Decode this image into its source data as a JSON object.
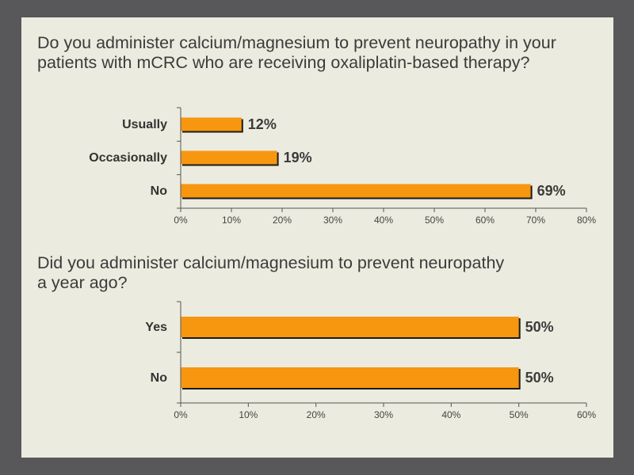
{
  "questions": {
    "q1": "Do you administer calcium/magnesium to prevent neuropathy in your patients with mCRC who are receiving oxaliplatin-based therapy?",
    "q2": "Did you administer calcium/magnesium to prevent neuropathy\na year ago?"
  },
  "colors": {
    "bar": "#f7960f",
    "shadow": "#1a1a1a",
    "axis": "#555555",
    "background": "#ecebdf",
    "frame": "#58585a"
  },
  "chart_data": [
    {
      "type": "bar",
      "orientation": "horizontal",
      "categories": [
        "Usually",
        "Occasionally",
        "No"
      ],
      "values": [
        12,
        19,
        69
      ],
      "value_labels": [
        "12%",
        "19%",
        "69%"
      ],
      "xlim": [
        0,
        80
      ],
      "ticks": [
        "0%",
        "10%",
        "20%",
        "30%",
        "40%",
        "50%",
        "60%",
        "70%",
        "80%"
      ],
      "grid": false,
      "legend": "none"
    },
    {
      "type": "bar",
      "orientation": "horizontal",
      "categories": [
        "Yes",
        "No"
      ],
      "values": [
        50,
        50
      ],
      "value_labels": [
        "50%",
        "50%"
      ],
      "xlim": [
        0,
        60
      ],
      "ticks": [
        "0%",
        "10%",
        "20%",
        "30%",
        "40%",
        "50%",
        "60%"
      ],
      "grid": false,
      "legend": "none"
    }
  ]
}
